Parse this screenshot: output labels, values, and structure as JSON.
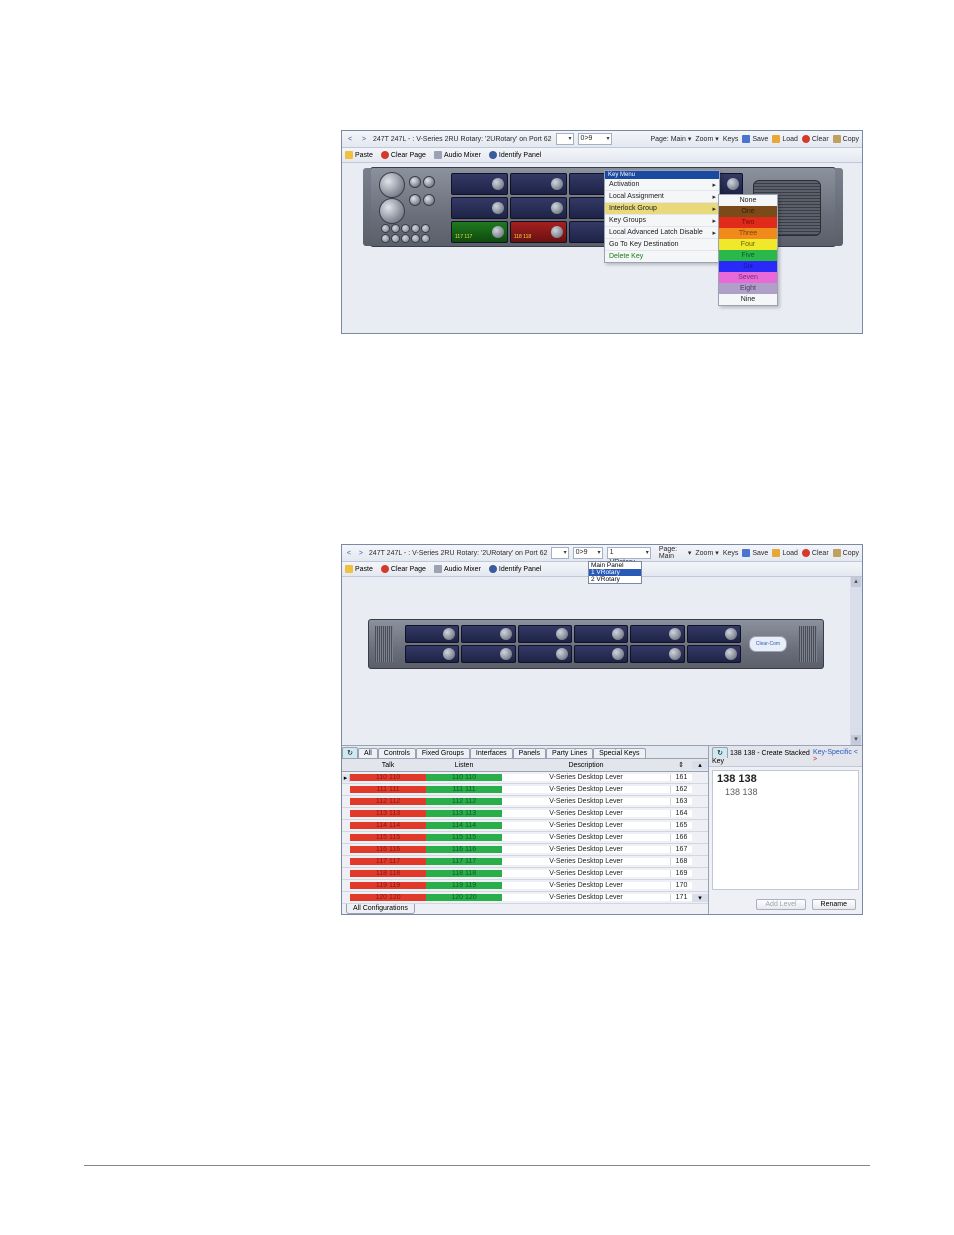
{
  "figure1": {
    "window_title": "247T 247L - : V-Series 2RU Rotary: '2URotary' on Port 62",
    "page_range": "0>9",
    "toolbar": {
      "nav_prev": "<",
      "nav_next": ">",
      "page_label": "Page: Main",
      "zoom_label": "Zoom",
      "keys_label": "Keys",
      "save_label": "Save",
      "load_label": "Load",
      "clear_label": "Clear",
      "copy_label": "Copy",
      "paste_label": "Paste",
      "clear_page_label": "Clear Page",
      "audio_mixer_label": "Audio Mixer",
      "identify_panel_label": "Identify Panel"
    },
    "rack": {
      "key_rows": 3,
      "key_cols": 5,
      "keys": [
        {
          "state": "blue"
        },
        {
          "state": "blue"
        },
        {
          "state": "blue"
        },
        {
          "state": "blue"
        },
        {
          "state": "blue"
        },
        {
          "state": "blue"
        },
        {
          "state": "blue"
        },
        {
          "state": "blue"
        },
        {
          "state": "blue"
        },
        {
          "state": "blue"
        },
        {
          "state": "green",
          "label": "117 117"
        },
        {
          "state": "red",
          "label": "118 118"
        },
        {
          "state": "blue"
        },
        {
          "state": "blue"
        },
        {
          "state": "green",
          "label": "119 119"
        }
      ],
      "key_blue": "#2a3470",
      "key_green": "#1f7a1f",
      "key_red": "#a52020"
    },
    "context_menu": {
      "header": "Key Menu",
      "items": [
        {
          "label": "Activation",
          "submenu": true
        },
        {
          "label": "Local Assignment",
          "submenu": true
        },
        {
          "label": "Interlock Group",
          "submenu": true,
          "highlight": true
        },
        {
          "label": "Key Groups",
          "submenu": true
        },
        {
          "label": "Local Advanced Latch Disable",
          "submenu": true
        },
        {
          "label": "Go To Key Destination"
        },
        {
          "label": "Delete Key",
          "delete": true
        }
      ]
    },
    "interlock_submenu": [
      {
        "label": "None",
        "bg": "#f5f6f8",
        "fg": "#202020"
      },
      {
        "label": "One",
        "bg": "#7a4a1a",
        "fg": "#3a2008"
      },
      {
        "label": "Two",
        "bg": "#e02a1a",
        "fg": "#7a1008"
      },
      {
        "label": "Three",
        "bg": "#f08a1a",
        "fg": "#7a4008"
      },
      {
        "label": "Four",
        "bg": "#f0e82a",
        "fg": "#6a6408"
      },
      {
        "label": "Five",
        "bg": "#2ab84a",
        "fg": "#0e5a25"
      },
      {
        "label": "Six",
        "bg": "#2a2af8",
        "fg": "#1414a0"
      },
      {
        "label": "Seven",
        "bg": "#e86ad8",
        "fg": "#7a2a70"
      },
      {
        "label": "Eight",
        "bg": "#b0a0c8",
        "fg": "#4a3a68"
      },
      {
        "label": "Nine",
        "bg": "#f5f6f8",
        "fg": "#202020"
      }
    ]
  },
  "figure2": {
    "window_title": "247T 247L - : V-Series 2RU Rotary: '2URotary' on Port 62",
    "page_range": "0>9",
    "panel_dd_value": "1 VRotary",
    "panel_dd_options": [
      "Main Panel",
      "1 VRotary",
      "2 VRotary"
    ],
    "panel_dd_selected": "1 VRotary",
    "toolbar": {
      "page_label": "Page: Main",
      "zoom_label": "Zoom",
      "keys_label": "Keys",
      "save_label": "Save",
      "load_label": "Load",
      "clear_label": "Clear",
      "copy_label": "Copy",
      "paste_label": "Paste",
      "clear_page_label": "Clear Page",
      "audio_mixer_label": "Audio Mixer",
      "identify_panel_label": "Identify Panel"
    },
    "logo": "Clear-Com",
    "tabs": [
      "All",
      "Controls",
      "Fixed Groups",
      "Interfaces",
      "Panels",
      "Party Lines",
      "Special Keys"
    ],
    "columns": [
      "Talk",
      "Listen",
      "Description"
    ],
    "rows": [
      {
        "talk": "110 110",
        "listen": "110 110",
        "desc": "V-Series Desktop Lever",
        "id": "161"
      },
      {
        "talk": "111 111",
        "listen": "111 111",
        "desc": "V-Series Desktop Lever",
        "id": "162"
      },
      {
        "talk": "112 112",
        "listen": "112 112",
        "desc": "V-Series Desktop Lever",
        "id": "163"
      },
      {
        "talk": "113 113",
        "listen": "113 113",
        "desc": "V-Series Desktop Lever",
        "id": "164"
      },
      {
        "talk": "114 114",
        "listen": "114 114",
        "desc": "V-Series Desktop Lever",
        "id": "165"
      },
      {
        "talk": "115 115",
        "listen": "115 115",
        "desc": "V-Series Desktop Lever",
        "id": "166"
      },
      {
        "talk": "116 116",
        "listen": "116 116",
        "desc": "V-Series Desktop Lever",
        "id": "167"
      },
      {
        "talk": "117 117",
        "listen": "117 117",
        "desc": "V-Series Desktop Lever",
        "id": "168"
      },
      {
        "talk": "118 118",
        "listen": "118 118",
        "desc": "V-Series Desktop Lever",
        "id": "169"
      },
      {
        "talk": "119 119",
        "listen": "119 119",
        "desc": "V-Series Desktop Lever",
        "id": "170"
      },
      {
        "talk": "120 120",
        "listen": "120 120",
        "desc": "V-Series Desktop Lever",
        "id": "171"
      }
    ],
    "talk_bg": "#e23a2a",
    "listen_bg": "#2aae4a",
    "all_config_label": "All Configurations",
    "right_panel": {
      "header": "138 138 - Create Stacked Key",
      "keyspec_label": "Key-Specific <",
      "line1": "138 138",
      "line2": "138 138",
      "add_label": "Add Level",
      "rename_label": "Rename"
    }
  }
}
